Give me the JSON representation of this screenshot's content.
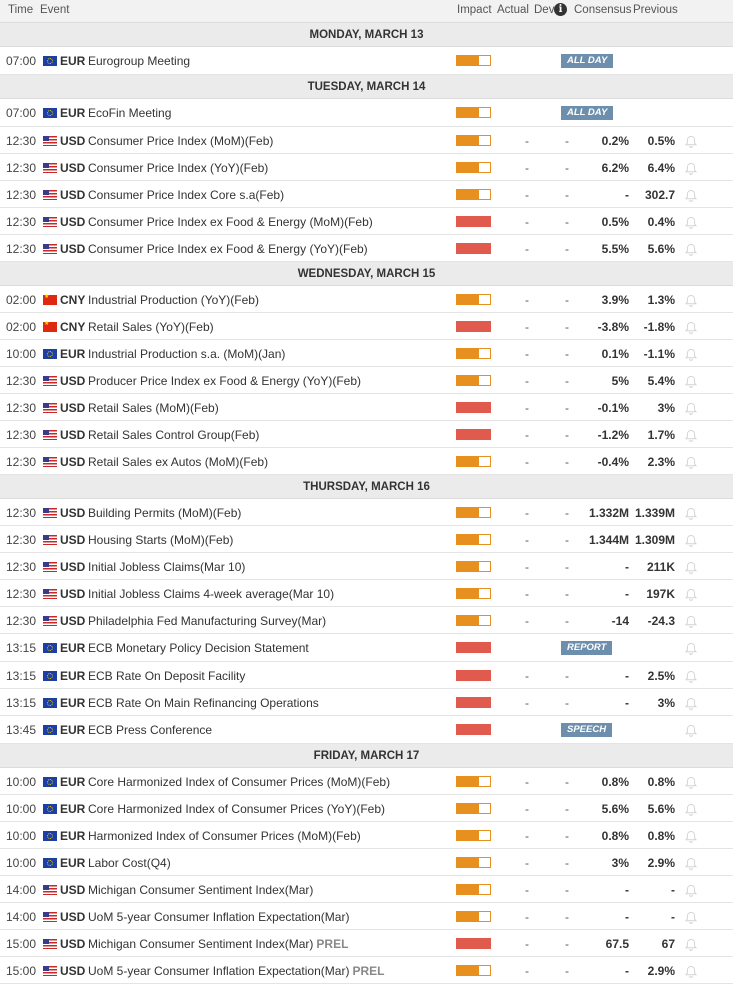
{
  "header": {
    "time": "Time",
    "event": "Event",
    "impact": "Impact",
    "actual": "Actual",
    "dev": "Dev",
    "consensus": "Consensus",
    "previous": "Previous"
  },
  "colors": {
    "medium_impact": "#e8901f",
    "high_impact": "#e05a4e",
    "tag_bg": "#6d8fad"
  },
  "icons": {
    "info": "info-icon",
    "alert": "bell-icon"
  },
  "days": [
    {
      "label": "MONDAY, MARCH 13",
      "events": [
        {
          "time": "07:00",
          "country": "eu",
          "currency": "EUR",
          "name": "Eurogroup Meeting",
          "impact": "medium",
          "tag": "ALL DAY"
        }
      ]
    },
    {
      "label": "TUESDAY, MARCH 14",
      "events": [
        {
          "time": "07:00",
          "country": "eu",
          "currency": "EUR",
          "name": "EcoFin Meeting",
          "impact": "medium",
          "tag": "ALL DAY"
        },
        {
          "time": "12:30",
          "country": "us",
          "currency": "USD",
          "name": "Consumer Price Index (MoM)(Feb)",
          "impact": "medium",
          "actual": "-",
          "dev": "-",
          "consensus": "0.2%",
          "previous": "0.5%"
        },
        {
          "time": "12:30",
          "country": "us",
          "currency": "USD",
          "name": "Consumer Price Index (YoY)(Feb)",
          "impact": "medium",
          "actual": "-",
          "dev": "-",
          "consensus": "6.2%",
          "previous": "6.4%"
        },
        {
          "time": "12:30",
          "country": "us",
          "currency": "USD",
          "name": "Consumer Price Index Core s.a(Feb)",
          "impact": "medium",
          "actual": "-",
          "dev": "-",
          "consensus": "-",
          "previous": "302.7"
        },
        {
          "time": "12:30",
          "country": "us",
          "currency": "USD",
          "name": "Consumer Price Index ex Food & Energy (MoM)(Feb)",
          "impact": "high",
          "actual": "-",
          "dev": "-",
          "consensus": "0.5%",
          "previous": "0.4%"
        },
        {
          "time": "12:30",
          "country": "us",
          "currency": "USD",
          "name": "Consumer Price Index ex Food & Energy (YoY)(Feb)",
          "impact": "high",
          "actual": "-",
          "dev": "-",
          "consensus": "5.5%",
          "previous": "5.6%"
        }
      ]
    },
    {
      "label": "WEDNESDAY, MARCH 15",
      "events": [
        {
          "time": "02:00",
          "country": "cn",
          "currency": "CNY",
          "name": "Industrial Production (YoY)(Feb)",
          "impact": "medium",
          "actual": "-",
          "dev": "-",
          "consensus": "3.9%",
          "previous": "1.3%"
        },
        {
          "time": "02:00",
          "country": "cn",
          "currency": "CNY",
          "name": "Retail Sales (YoY)(Feb)",
          "impact": "high",
          "actual": "-",
          "dev": "-",
          "consensus": "-3.8%",
          "previous": "-1.8%"
        },
        {
          "time": "10:00",
          "country": "eu",
          "currency": "EUR",
          "name": "Industrial Production s.a. (MoM)(Jan)",
          "impact": "medium",
          "actual": "-",
          "dev": "-",
          "consensus": "0.1%",
          "previous": "-1.1%"
        },
        {
          "time": "12:30",
          "country": "us",
          "currency": "USD",
          "name": "Producer Price Index ex Food & Energy (YoY)(Feb)",
          "impact": "medium",
          "actual": "-",
          "dev": "-",
          "consensus": "5%",
          "previous": "5.4%"
        },
        {
          "time": "12:30",
          "country": "us",
          "currency": "USD",
          "name": "Retail Sales (MoM)(Feb)",
          "impact": "high",
          "actual": "-",
          "dev": "-",
          "consensus": "-0.1%",
          "previous": "3%"
        },
        {
          "time": "12:30",
          "country": "us",
          "currency": "USD",
          "name": "Retail Sales Control Group(Feb)",
          "impact": "high",
          "actual": "-",
          "dev": "-",
          "consensus": "-1.2%",
          "previous": "1.7%"
        },
        {
          "time": "12:30",
          "country": "us",
          "currency": "USD",
          "name": "Retail Sales ex Autos (MoM)(Feb)",
          "impact": "medium",
          "actual": "-",
          "dev": "-",
          "consensus": "-0.4%",
          "previous": "2.3%"
        }
      ]
    },
    {
      "label": "THURSDAY, MARCH 16",
      "events": [
        {
          "time": "12:30",
          "country": "us",
          "currency": "USD",
          "name": "Building Permits (MoM)(Feb)",
          "impact": "medium",
          "actual": "-",
          "dev": "-",
          "consensus": "1.332M",
          "previous": "1.339M"
        },
        {
          "time": "12:30",
          "country": "us",
          "currency": "USD",
          "name": "Housing Starts (MoM)(Feb)",
          "impact": "medium",
          "actual": "-",
          "dev": "-",
          "consensus": "1.344M",
          "previous": "1.309M"
        },
        {
          "time": "12:30",
          "country": "us",
          "currency": "USD",
          "name": "Initial Jobless Claims(Mar 10)",
          "impact": "medium",
          "actual": "-",
          "dev": "-",
          "consensus": "-",
          "previous": "211K"
        },
        {
          "time": "12:30",
          "country": "us",
          "currency": "USD",
          "name": "Initial Jobless Claims 4-week average(Mar 10)",
          "impact": "medium",
          "actual": "-",
          "dev": "-",
          "consensus": "-",
          "previous": "197K"
        },
        {
          "time": "12:30",
          "country": "us",
          "currency": "USD",
          "name": "Philadelphia Fed Manufacturing Survey(Mar)",
          "impact": "medium",
          "actual": "-",
          "dev": "-",
          "consensus": "-14",
          "previous": "-24.3"
        },
        {
          "time": "13:15",
          "country": "eu",
          "currency": "EUR",
          "name": "ECB Monetary Policy Decision Statement",
          "impact": "high",
          "tag": "REPORT"
        },
        {
          "time": "13:15",
          "country": "eu",
          "currency": "EUR",
          "name": "ECB Rate On Deposit Facility",
          "impact": "high",
          "actual": "-",
          "dev": "-",
          "consensus": "-",
          "previous": "2.5%"
        },
        {
          "time": "13:15",
          "country": "eu",
          "currency": "EUR",
          "name": "ECB Rate On Main Refinancing Operations",
          "impact": "high",
          "actual": "-",
          "dev": "-",
          "consensus": "-",
          "previous": "3%"
        },
        {
          "time": "13:45",
          "country": "eu",
          "currency": "EUR",
          "name": "ECB Press Conference",
          "impact": "high",
          "tag": "SPEECH"
        }
      ]
    },
    {
      "label": "FRIDAY, MARCH 17",
      "events": [
        {
          "time": "10:00",
          "country": "eu",
          "currency": "EUR",
          "name": "Core Harmonized Index of Consumer Prices (MoM)(Feb)",
          "impact": "medium",
          "actual": "-",
          "dev": "-",
          "consensus": "0.8%",
          "previous": "0.8%"
        },
        {
          "time": "10:00",
          "country": "eu",
          "currency": "EUR",
          "name": "Core Harmonized Index of Consumer Prices (YoY)(Feb)",
          "impact": "medium",
          "actual": "-",
          "dev": "-",
          "consensus": "5.6%",
          "previous": "5.6%"
        },
        {
          "time": "10:00",
          "country": "eu",
          "currency": "EUR",
          "name": "Harmonized Index of Consumer Prices (MoM)(Feb)",
          "impact": "medium",
          "actual": "-",
          "dev": "-",
          "consensus": "0.8%",
          "previous": "0.8%"
        },
        {
          "time": "10:00",
          "country": "eu",
          "currency": "EUR",
          "name": "Labor Cost(Q4)",
          "impact": "medium",
          "actual": "-",
          "dev": "-",
          "consensus": "3%",
          "previous": "2.9%"
        },
        {
          "time": "14:00",
          "country": "us",
          "currency": "USD",
          "name": "Michigan Consumer Sentiment Index(Mar)",
          "impact": "medium",
          "actual": "-",
          "dev": "-",
          "consensus": "-",
          "previous": "-"
        },
        {
          "time": "14:00",
          "country": "us",
          "currency": "USD",
          "name": "UoM 5-year Consumer Inflation Expectation(Mar)",
          "impact": "medium",
          "actual": "-",
          "dev": "-",
          "consensus": "-",
          "previous": "-"
        },
        {
          "time": "15:00",
          "country": "us",
          "currency": "USD",
          "name": "Michigan Consumer Sentiment Index(Mar)",
          "suffix": "PREL",
          "impact": "high",
          "actual": "-",
          "dev": "-",
          "consensus": "67.5",
          "previous": "67"
        },
        {
          "time": "15:00",
          "country": "us",
          "currency": "USD",
          "name": "UoM 5-year Consumer Inflation Expectation(Mar)",
          "suffix": "PREL",
          "impact": "medium",
          "actual": "-",
          "dev": "-",
          "consensus": "-",
          "previous": "2.9%"
        }
      ]
    }
  ]
}
